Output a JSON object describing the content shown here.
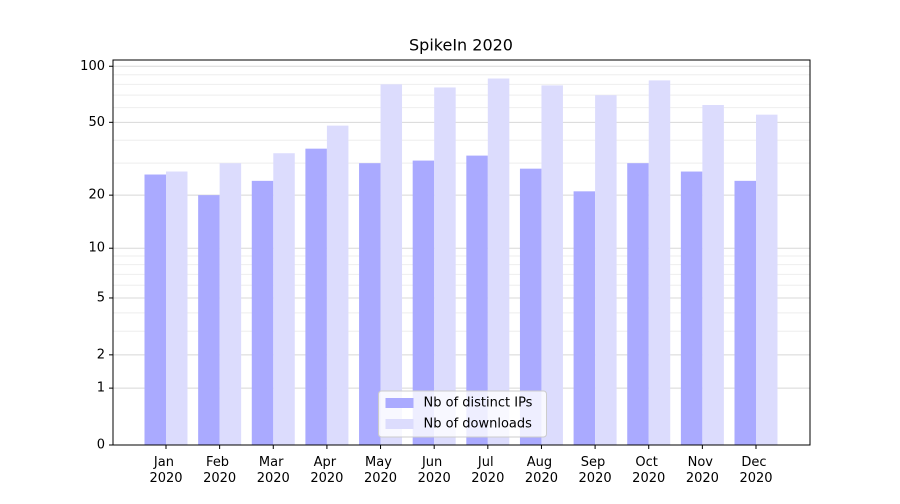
{
  "chart_data": {
    "type": "bar",
    "title": "SpikeIn 2020",
    "categories": [
      "Jan 2020",
      "Feb 2020",
      "Mar 2020",
      "Apr 2020",
      "May 2020",
      "Jun 2020",
      "Jul 2020",
      "Aug 2020",
      "Sep 2020",
      "Oct 2020",
      "Nov 2020",
      "Dec 2020"
    ],
    "series": [
      {
        "name": "Nb of distinct IPs",
        "color": "#aaaaff",
        "values": [
          26,
          20,
          24,
          36,
          30,
          31,
          33,
          28,
          21,
          30,
          27,
          24
        ]
      },
      {
        "name": "Nb of downloads",
        "color": "#dcdcfd",
        "values": [
          27,
          30,
          34,
          48,
          80,
          77,
          86,
          79,
          70,
          84,
          62,
          55
        ]
      }
    ],
    "yscale": "log1p",
    "ylim": [
      0,
      108
    ],
    "yticks": [
      0,
      1,
      2,
      5,
      10,
      20,
      50,
      100
    ],
    "minor_yticks": [
      3,
      4,
      6,
      7,
      8,
      9,
      30,
      40,
      60,
      70,
      80,
      90
    ],
    "grid": true,
    "legend": "lower center"
  }
}
